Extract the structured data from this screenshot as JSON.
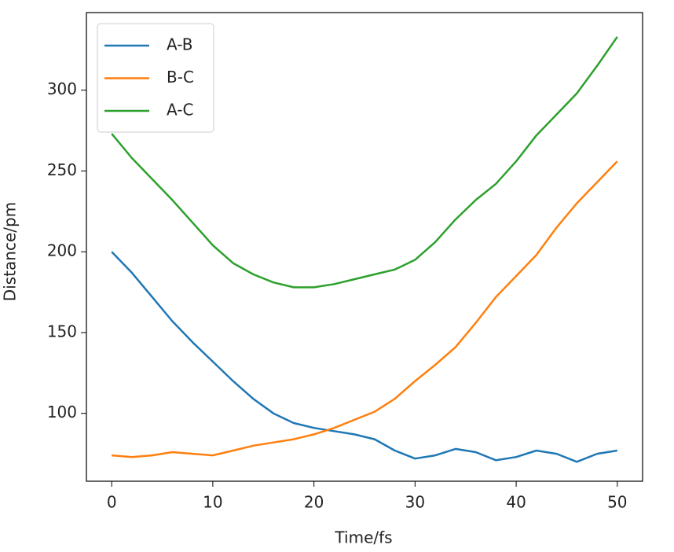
{
  "chart_data": {
    "type": "line",
    "xlabel": "Time/fs",
    "ylabel": "Distance/pm",
    "x": [
      0,
      2,
      4,
      6,
      8,
      10,
      12,
      14,
      16,
      18,
      20,
      22,
      24,
      26,
      28,
      30,
      32,
      34,
      36,
      38,
      40,
      42,
      44,
      46,
      48,
      50
    ],
    "series": [
      {
        "name": "A-B",
        "color": "#1f77b4",
        "values": [
          200,
          187,
          172,
          157,
          144,
          132,
          120,
          109,
          100,
          94,
          91,
          89,
          87,
          84,
          77,
          72,
          74,
          78,
          76,
          71,
          73,
          77,
          75,
          70,
          75,
          77
        ]
      },
      {
        "name": "B-C",
        "color": "#ff7f0e",
        "values": [
          74,
          73,
          74,
          76,
          75,
          74,
          77,
          80,
          82,
          84,
          87,
          91,
          96,
          101,
          109,
          120,
          130,
          141,
          156,
          172,
          185,
          198,
          215,
          230,
          243,
          256
        ]
      },
      {
        "name": "A-C",
        "color": "#2ca02c",
        "values": [
          273,
          258,
          245,
          232,
          218,
          204,
          193,
          186,
          181,
          178,
          178,
          180,
          183,
          186,
          189,
          195,
          206,
          220,
          232,
          242,
          256,
          272,
          285,
          298,
          315,
          333
        ]
      }
    ],
    "xlim": [
      -2.5,
      52.5
    ],
    "xticks": [
      0,
      10,
      20,
      30,
      40,
      50
    ],
    "ylim": [
      58,
      348
    ],
    "yticks": [
      100,
      150,
      200,
      250,
      300
    ],
    "grid": false,
    "legend": "upper left"
  }
}
